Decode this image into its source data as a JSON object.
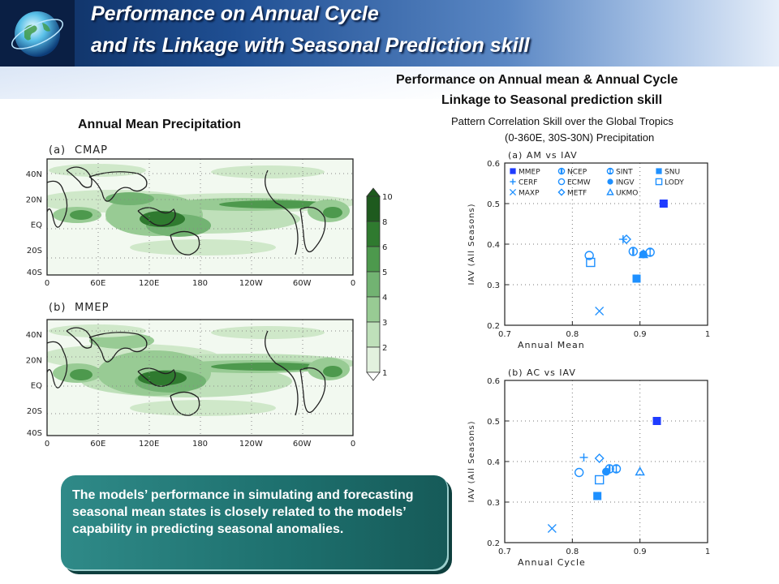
{
  "header": {
    "title_line1": "Performance on Annual Cycle",
    "title_line2": "and its Linkage with Seasonal Prediction skill"
  },
  "left": {
    "heading": "Annual Mean Precipitation",
    "maps": [
      {
        "panel": "(a)",
        "name": "CMAP"
      },
      {
        "panel": "(b)",
        "name": "MMEP"
      }
    ],
    "lat_labels": [
      "40N",
      "20N",
      "EQ",
      "20S",
      "40S"
    ],
    "lon_labels": [
      "0",
      "60E",
      "120E",
      "180",
      "120W",
      "60W",
      "0"
    ],
    "colorbar": {
      "ticks": [
        "10",
        "8",
        "6",
        "5",
        "4",
        "3",
        "2",
        "1"
      ],
      "colors": [
        "#1e5a1e",
        "#2f7a2f",
        "#4d994d",
        "#72b372",
        "#98cb94",
        "#bfe0ba",
        "#e2f1de"
      ]
    }
  },
  "right": {
    "heading_line1": "Performance on Annual mean & Annual Cycle",
    "heading_line2": "Linkage to Seasonal prediction skill",
    "sub_line1": "Pattern Correlation Skill over the Global Tropics",
    "sub_line2": "(0-360E, 30S-30N)  Precipitation"
  },
  "callout": {
    "text": "The models’ performance in simulating and forecasting seasonal mean states is closely related to the models’ capability in predicting seasonal anomalies."
  },
  "chart_data": [
    {
      "type": "scatter",
      "title": "(a)  AM  vs  IAV",
      "xlabel": "Annual  Mean",
      "ylabel": "IAV  (All  Seasons)",
      "xlim": [
        0.7,
        1.0
      ],
      "ylim": [
        0.2,
        0.6
      ],
      "xticks": [
        "0.7",
        "0.8",
        "0.9",
        "1"
      ],
      "yticks": [
        "0.2",
        "0.3",
        "0.4",
        "0.5",
        "0.6"
      ],
      "grid": true,
      "legend_position": "top-left",
      "color": "#1e90ff",
      "highlight_color": "#1f3cff",
      "series": [
        {
          "name": "MMEP",
          "marker": "filled-square",
          "x": 0.935,
          "y": 0.5
        },
        {
          "name": "NCEP",
          "marker": "circle-bar",
          "x": 0.89,
          "y": 0.382
        },
        {
          "name": "SINT",
          "marker": "circle-ibar",
          "x": 0.915,
          "y": 0.38
        },
        {
          "name": "SNU",
          "marker": "filled-square",
          "x": 0.895,
          "y": 0.315
        },
        {
          "name": "CERF",
          "marker": "plus",
          "x": 0.875,
          "y": 0.412
        },
        {
          "name": "ECMW",
          "marker": "circle",
          "x": 0.825,
          "y": 0.372
        },
        {
          "name": "INGV",
          "marker": "filled-circle",
          "x": 0.905,
          "y": 0.375
        },
        {
          "name": "LODY",
          "marker": "square",
          "x": 0.827,
          "y": 0.355
        },
        {
          "name": "MAXP",
          "marker": "x",
          "x": 0.84,
          "y": 0.235
        },
        {
          "name": "METF",
          "marker": "diamond",
          "x": 0.88,
          "y": 0.412
        },
        {
          "name": "UKMO",
          "marker": "triangle",
          "x": 0.905,
          "y": 0.375
        }
      ]
    },
    {
      "type": "scatter",
      "title": "(b)  AC  vs  IAV",
      "xlabel": "Annual  Cycle",
      "ylabel": "IAV  (All  Seasons)",
      "xlim": [
        0.7,
        1.0
      ],
      "ylim": [
        0.2,
        0.6
      ],
      "xticks": [
        "0.7",
        "0.8",
        "0.9",
        "1"
      ],
      "yticks": [
        "0.2",
        "0.3",
        "0.4",
        "0.5",
        "0.6"
      ],
      "grid": true,
      "color": "#1e90ff",
      "highlight_color": "#1f3cff",
      "series": [
        {
          "name": "MMEP",
          "marker": "filled-square",
          "x": 0.925,
          "y": 0.5
        },
        {
          "name": "NCEP",
          "marker": "circle-bar",
          "x": 0.855,
          "y": 0.382
        },
        {
          "name": "SINT",
          "marker": "circle-ibar",
          "x": 0.865,
          "y": 0.382
        },
        {
          "name": "SNU",
          "marker": "filled-square",
          "x": 0.837,
          "y": 0.315
        },
        {
          "name": "CERF",
          "marker": "plus",
          "x": 0.817,
          "y": 0.41
        },
        {
          "name": "ECMW",
          "marker": "circle",
          "x": 0.81,
          "y": 0.373
        },
        {
          "name": "INGV",
          "marker": "filled-circle",
          "x": 0.85,
          "y": 0.375
        },
        {
          "name": "LODY",
          "marker": "square",
          "x": 0.84,
          "y": 0.355
        },
        {
          "name": "MAXP",
          "marker": "x",
          "x": 0.77,
          "y": 0.235
        },
        {
          "name": "METF",
          "marker": "diamond",
          "x": 0.84,
          "y": 0.408
        },
        {
          "name": "UKMO",
          "marker": "triangle",
          "x": 0.9,
          "y": 0.375
        }
      ]
    }
  ]
}
